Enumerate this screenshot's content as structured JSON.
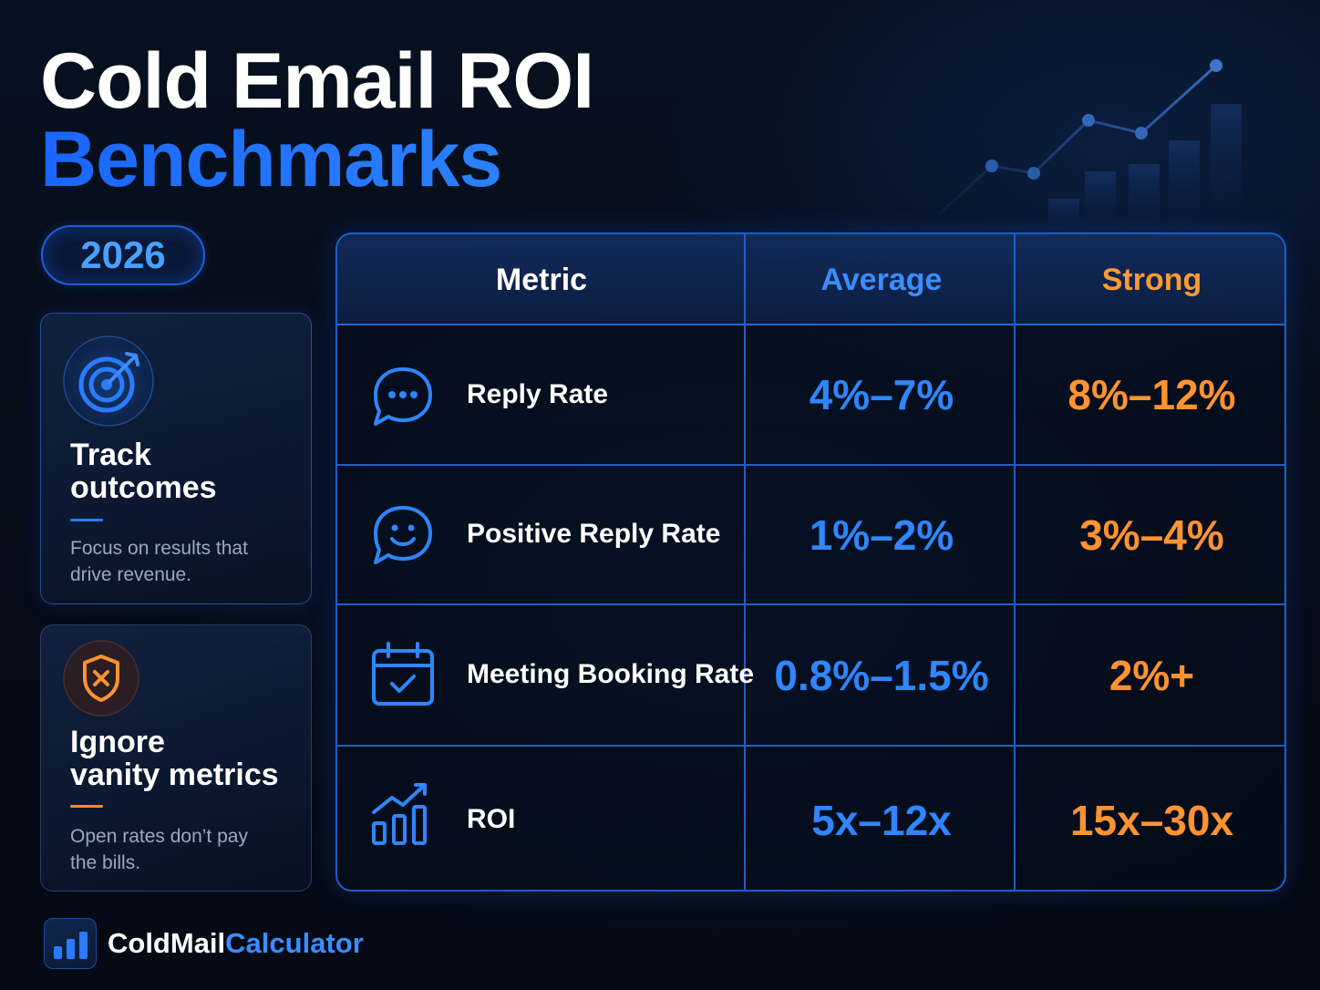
{
  "header": {
    "title_line1": "Cold Email ROI",
    "title_line2": "Benchmarks",
    "year": "2026"
  },
  "cards": [
    {
      "icon": "target-icon",
      "title_line1": "Track",
      "title_line2": "outcomes",
      "desc_line1": "Focus on results that",
      "desc_line2": "drive revenue."
    },
    {
      "icon": "shield-x-icon",
      "title_line1": "Ignore",
      "title_line2": "vanity metrics",
      "desc_line1": "Open rates don’t pay",
      "desc_line2": "the bills."
    }
  ],
  "table": {
    "headers": {
      "metric": "Metric",
      "average": "Average",
      "strong": "Strong"
    },
    "rows": [
      {
        "icon": "chat-bubble-icon",
        "metric": "Reply Rate",
        "average": "4%–7%",
        "strong": "8%–12%"
      },
      {
        "icon": "smiley-chat-icon",
        "metric": "Positive Reply Rate",
        "average": "1%–2%",
        "strong": "3%–4%"
      },
      {
        "icon": "calendar-check-icon",
        "metric": "Meeting Booking Rate",
        "average": "0.8%–1.5%",
        "strong": "2%+"
      },
      {
        "icon": "growth-chart-icon",
        "metric": "ROI",
        "average": "5x–12x",
        "strong": "15x–30x"
      }
    ]
  },
  "brand": {
    "icon": "bar-chart-logo-icon",
    "name_part1": "ColdMail",
    "name_part2": "Calculator"
  },
  "colors": {
    "background": "#060b16",
    "accent_blue": "#2f86ff",
    "accent_orange": "#ff9330",
    "text_white": "#ffffff"
  }
}
